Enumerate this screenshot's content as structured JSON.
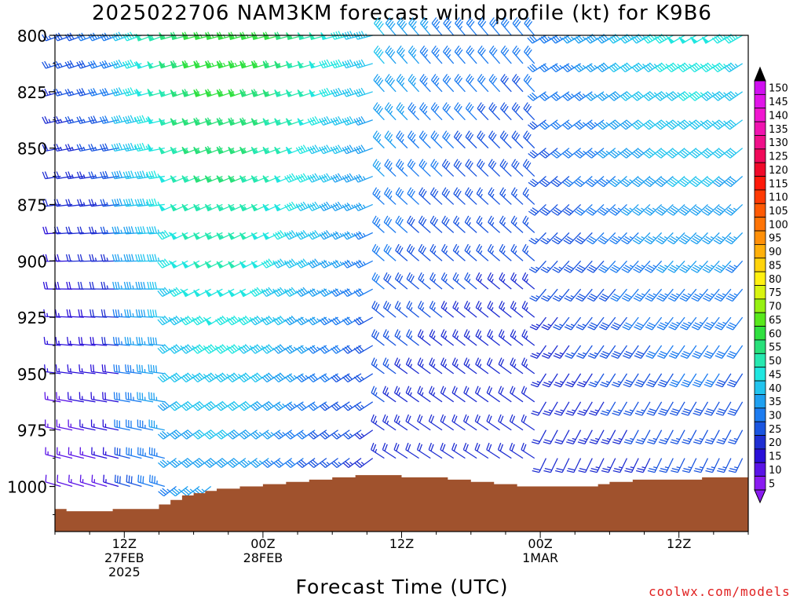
{
  "chart_data": {
    "type": "wind-barb",
    "title": "2025022706 NAM3KM forecast wind profile (kt) for K9B6",
    "xlabel": "Forecast Time (UTC)",
    "ylabel": "",
    "y_axis": {
      "reversed": true,
      "range": [
        800,
        1020
      ],
      "ticks": [
        "800",
        "825",
        "850",
        "875",
        "900",
        "925",
        "950",
        "975",
        "1000"
      ]
    },
    "x_axis": {
      "range_hours": [
        6,
        66
      ],
      "ticks": [
        {
          "h": 12,
          "lines": [
            "12Z",
            "27FEB",
            "2025"
          ]
        },
        {
          "h": 24,
          "lines": [
            "00Z",
            "28FEB"
          ]
        },
        {
          "h": 36,
          "lines": [
            "12Z"
          ]
        },
        {
          "h": 48,
          "lines": [
            "00Z",
            "1MAR"
          ]
        },
        {
          "h": 60,
          "lines": [
            "12Z"
          ]
        }
      ]
    },
    "colorbar": {
      "labels": [
        "5",
        "10",
        "15",
        "20",
        "25",
        "30",
        "35",
        "40",
        "45",
        "50",
        "55",
        "60",
        "65",
        "70",
        "75",
        "80",
        "85",
        "90",
        "95",
        "100",
        "105",
        "110",
        "115",
        "120",
        "125",
        "130",
        "135",
        "140",
        "145",
        "150"
      ],
      "colors": [
        "#8a1cf0",
        "#5a14e6",
        "#2a10d8",
        "#1f2ed2",
        "#1a55e0",
        "#1d7cf0",
        "#1fa0f0",
        "#22c4ee",
        "#20e6e0",
        "#26e8b0",
        "#28e07a",
        "#30e040",
        "#58e81c",
        "#96f012",
        "#d8f410",
        "#fff010",
        "#ffd40c",
        "#ffb00a",
        "#ff9008",
        "#ff7406",
        "#ff5a04",
        "#ff3a04",
        "#ff1a0a",
        "#f00a2a",
        "#f00a5a",
        "#f0108a",
        "#f014b0",
        "#f016d0",
        "#e014e8",
        "#d010f0"
      ]
    },
    "surface_pressure": [
      [
        6,
        1010
      ],
      [
        7,
        1011
      ],
      [
        9,
        1011
      ],
      [
        11,
        1010
      ],
      [
        13,
        1010
      ],
      [
        15,
        1008
      ],
      [
        16,
        1006
      ],
      [
        17,
        1004
      ],
      [
        18,
        1003
      ],
      [
        19,
        1002
      ],
      [
        20,
        1001
      ],
      [
        22,
        1000
      ],
      [
        24,
        999
      ],
      [
        26,
        998
      ],
      [
        28,
        997
      ],
      [
        30,
        996
      ],
      [
        32,
        995
      ],
      [
        34,
        995
      ],
      [
        36,
        996
      ],
      [
        38,
        996
      ],
      [
        40,
        997
      ],
      [
        42,
        998
      ],
      [
        44,
        999
      ],
      [
        46,
        1000
      ],
      [
        48,
        1000
      ],
      [
        50,
        1000
      ],
      [
        52,
        1000
      ],
      [
        53,
        999
      ],
      [
        54,
        998
      ],
      [
        56,
        997
      ],
      [
        58,
        997
      ],
      [
        60,
        997
      ],
      [
        62,
        996
      ],
      [
        64,
        996
      ],
      [
        66,
        996
      ]
    ]
  },
  "credit": "coolwx.com/models"
}
